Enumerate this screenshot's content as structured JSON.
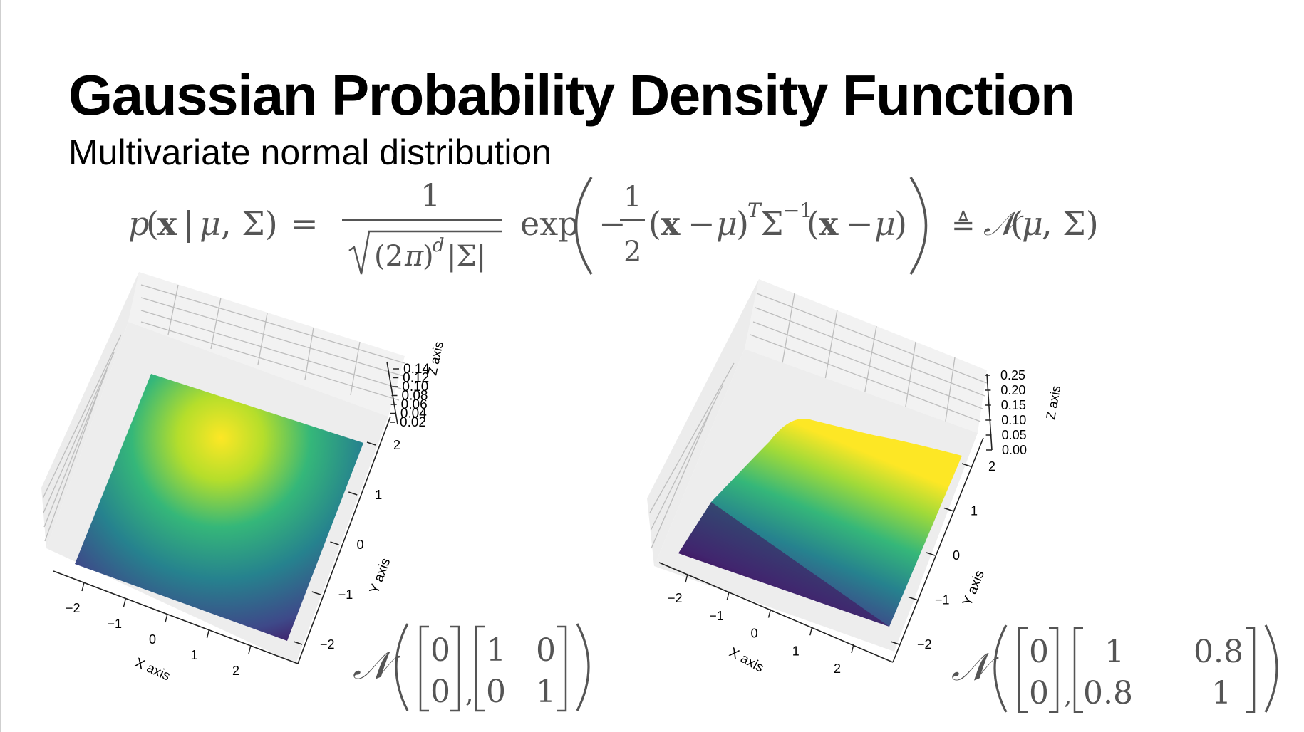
{
  "title": "Gaussian Probability Density Function",
  "subtitle": "Multivariate normal distribution",
  "formula": {
    "lhs": "p(x | μ, Σ) =",
    "numerator": "1",
    "denominator": "√((2π)^d |Σ|)",
    "exp": "exp",
    "half_num": "1",
    "half_den": "2",
    "quadratic_form": "(x − μ)^T Σ^−1 (x − μ)",
    "defeq": "≜",
    "rhs": "𝒩(μ, Σ)"
  },
  "colors": {
    "viridis_low": "#440154",
    "viridis_mid": "#21918c",
    "viridis_high": "#fde725",
    "formula_text": "#555555",
    "pane": "#f2f2f2",
    "grid": "#bdbdbd"
  },
  "plots": [
    {
      "type": "surface",
      "colormap": "viridis",
      "x_axis_label": "X axis",
      "y_axis_label": "Y axis",
      "z_axis_label": "Z axis",
      "x_ticks": [
        "−2",
        "−1",
        "0",
        "1",
        "2"
      ],
      "y_ticks": [
        "−2",
        "−1",
        "0",
        "1",
        "2"
      ],
      "z_ticks": [
        "0.02",
        "0.04",
        "0.06",
        "0.08",
        "0.10",
        "0.12",
        "0.14"
      ],
      "mean": [
        "0",
        "0"
      ],
      "covariance": [
        [
          "1",
          "0"
        ],
        [
          "0",
          "1"
        ]
      ]
    },
    {
      "type": "surface",
      "colormap": "viridis",
      "x_axis_label": "X axis",
      "y_axis_label": "Y axis",
      "z_axis_label": "Z axis",
      "x_ticks": [
        "−2",
        "−1",
        "0",
        "1",
        "2"
      ],
      "y_ticks": [
        "−2",
        "−1",
        "0",
        "1",
        "2"
      ],
      "z_ticks": [
        "0.00",
        "0.05",
        "0.10",
        "0.15",
        "0.20",
        "0.25"
      ],
      "mean": [
        "0",
        "0"
      ],
      "covariance": [
        [
          "1",
          "0.8"
        ],
        [
          "0.8",
          "1"
        ]
      ]
    }
  ]
}
